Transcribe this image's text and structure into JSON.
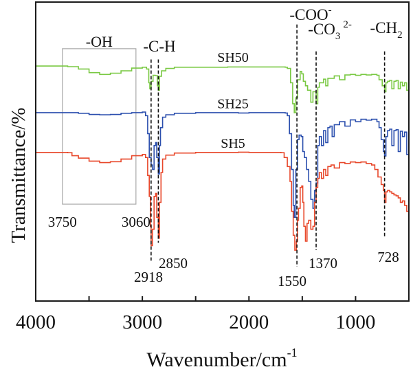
{
  "chart_data": {
    "type": "line",
    "title": "",
    "xlabel": "Wavenumber/cm",
    "xlabel_sup": "-1",
    "ylabel": "Transmittance/%",
    "xlim": [
      4000,
      500
    ],
    "ylim": [
      0,
      100
    ],
    "x_ticks": [
      4000,
      3000,
      2000,
      1000
    ],
    "x_minor_ticks": [
      3500,
      2500,
      1500
    ],
    "x_tick_labels": [
      "4000",
      "3000",
      "2000",
      "1000"
    ],
    "grid": false,
    "series": [
      {
        "name": "SH50",
        "color": "#7ac943",
        "label_at": [
          2150,
          80
        ],
        "points": [
          [
            4000,
            78.6
          ],
          [
            3800,
            78.6
          ],
          [
            3700,
            78.4
          ],
          [
            3600,
            77.6
          ],
          [
            3500,
            76.4
          ],
          [
            3400,
            75.8
          ],
          [
            3300,
            76.2
          ],
          [
            3200,
            77.0
          ],
          [
            3100,
            77.9
          ],
          [
            3000,
            78.2
          ],
          [
            2960,
            77.6
          ],
          [
            2940,
            73
          ],
          [
            2930,
            71.0
          ],
          [
            2918,
            73.5
          ],
          [
            2900,
            75.5
          ],
          [
            2880,
            75.4
          ],
          [
            2860,
            72.0
          ],
          [
            2850,
            70.5
          ],
          [
            2840,
            75.2
          ],
          [
            2820,
            77.0
          ],
          [
            2780,
            77.8
          ],
          [
            2700,
            78.2
          ],
          [
            2500,
            78.2
          ],
          [
            2200,
            78.3
          ],
          [
            2000,
            78.3
          ],
          [
            1800,
            78.3
          ],
          [
            1660,
            78.2
          ],
          [
            1640,
            77.8
          ],
          [
            1610,
            73
          ],
          [
            1590,
            66
          ],
          [
            1575,
            63.0
          ],
          [
            1560,
            68
          ],
          [
            1545,
            74
          ],
          [
            1520,
            76.8
          ],
          [
            1505,
            76.0
          ],
          [
            1490,
            73.5
          ],
          [
            1470,
            72.0
          ],
          [
            1450,
            70.5
          ],
          [
            1420,
            66.5
          ],
          [
            1400,
            70
          ],
          [
            1370,
            66.0
          ],
          [
            1355,
            71.5
          ],
          [
            1340,
            73
          ],
          [
            1300,
            74.2
          ],
          [
            1280,
            72
          ],
          [
            1260,
            74.5
          ],
          [
            1200,
            75.3
          ],
          [
            1150,
            74.0
          ],
          [
            1100,
            75.6
          ],
          [
            1050,
            75.8
          ],
          [
            1000,
            75.5
          ],
          [
            950,
            75.8
          ],
          [
            900,
            75.6
          ],
          [
            850,
            75.8
          ],
          [
            800,
            75.5
          ],
          [
            780,
            74.0
          ],
          [
            750,
            72.0
          ],
          [
            728,
            70.0
          ],
          [
            715,
            73.0
          ],
          [
            700,
            73.5
          ],
          [
            680,
            73.8
          ],
          [
            660,
            71.0
          ],
          [
            640,
            73.5
          ],
          [
            620,
            73.8
          ],
          [
            600,
            71.0
          ],
          [
            580,
            73.2
          ],
          [
            560,
            72.0
          ],
          [
            540,
            73.0
          ],
          [
            520,
            70.5
          ],
          [
            500,
            72.8
          ]
        ]
      },
      {
        "name": "SH25",
        "color": "#2b4fae",
        "label_at": [
          2150,
          64.5
        ],
        "points": [
          [
            4000,
            63.0
          ],
          [
            3800,
            63.0
          ],
          [
            3700,
            63.0
          ],
          [
            3600,
            62.8
          ],
          [
            3500,
            62.4
          ],
          [
            3400,
            62.3
          ],
          [
            3300,
            62.4
          ],
          [
            3200,
            62.8
          ],
          [
            3100,
            63.0
          ],
          [
            3000,
            63.2
          ],
          [
            2970,
            62.0
          ],
          [
            2950,
            56
          ],
          [
            2935,
            48
          ],
          [
            2918,
            45.5
          ],
          [
            2905,
            44
          ],
          [
            2890,
            52
          ],
          [
            2875,
            53.0
          ],
          [
            2865,
            48
          ],
          [
            2850,
            42.5
          ],
          [
            2840,
            52
          ],
          [
            2830,
            58
          ],
          [
            2810,
            61.5
          ],
          [
            2780,
            62.3
          ],
          [
            2700,
            62.8
          ],
          [
            2500,
            63.0
          ],
          [
            2300,
            63.0
          ],
          [
            2100,
            62.9
          ],
          [
            2000,
            63.0
          ],
          [
            1800,
            63.0
          ],
          [
            1660,
            62.9
          ],
          [
            1640,
            62.0
          ],
          [
            1620,
            56
          ],
          [
            1600,
            44
          ],
          [
            1585,
            32
          ],
          [
            1575,
            28.0
          ],
          [
            1560,
            44
          ],
          [
            1545,
            54
          ],
          [
            1530,
            55.5
          ],
          [
            1510,
            55
          ],
          [
            1495,
            50
          ],
          [
            1480,
            48
          ],
          [
            1460,
            44
          ],
          [
            1440,
            40
          ],
          [
            1420,
            34
          ],
          [
            1400,
            31
          ],
          [
            1385,
            37
          ],
          [
            1370,
            39.5
          ],
          [
            1355,
            52
          ],
          [
            1340,
            55
          ],
          [
            1320,
            52
          ],
          [
            1300,
            57
          ],
          [
            1280,
            53
          ],
          [
            1260,
            58
          ],
          [
            1240,
            58.5
          ],
          [
            1220,
            55
          ],
          [
            1200,
            59
          ],
          [
            1150,
            60.0
          ],
          [
            1100,
            58.5
          ],
          [
            1050,
            60.6
          ],
          [
            1000,
            60.0
          ],
          [
            950,
            60.8
          ],
          [
            900,
            60.5
          ],
          [
            850,
            60.8
          ],
          [
            800,
            60.0
          ],
          [
            780,
            58
          ],
          [
            760,
            54
          ],
          [
            740,
            50
          ],
          [
            728,
            48.5
          ],
          [
            715,
            55
          ],
          [
            700,
            57
          ],
          [
            680,
            57.5
          ],
          [
            660,
            52
          ],
          [
            640,
            57
          ],
          [
            620,
            57.3
          ],
          [
            600,
            50
          ],
          [
            580,
            56.8
          ],
          [
            560,
            55
          ],
          [
            540,
            56.5
          ],
          [
            520,
            49
          ],
          [
            500,
            56.5
          ]
        ]
      },
      {
        "name": "SH5",
        "color": "#e8472a",
        "label_at": [
          2150,
          51.3
        ],
        "points": [
          [
            4000,
            49.7
          ],
          [
            3800,
            49.7
          ],
          [
            3700,
            49.6
          ],
          [
            3660,
            48.6
          ],
          [
            3600,
            47.8
          ],
          [
            3500,
            46.8
          ],
          [
            3400,
            46.3
          ],
          [
            3300,
            46.6
          ],
          [
            3200,
            47.5
          ],
          [
            3100,
            48.6
          ],
          [
            3000,
            49.0
          ],
          [
            2970,
            48.0
          ],
          [
            2950,
            42
          ],
          [
            2935,
            35
          ],
          [
            2925,
            25
          ],
          [
            2918,
            18.5
          ],
          [
            2905,
            24
          ],
          [
            2890,
            35
          ],
          [
            2875,
            36
          ],
          [
            2865,
            28
          ],
          [
            2850,
            21
          ],
          [
            2840,
            33
          ],
          [
            2825,
            43
          ],
          [
            2810,
            47.5
          ],
          [
            2780,
            48.8
          ],
          [
            2700,
            49.5
          ],
          [
            2500,
            49.7
          ],
          [
            2300,
            49.7
          ],
          [
            2100,
            49.8
          ],
          [
            2000,
            49.7
          ],
          [
            1800,
            49.7
          ],
          [
            1700,
            49.6
          ],
          [
            1670,
            48
          ],
          [
            1640,
            45
          ],
          [
            1615,
            40
          ],
          [
            1600,
            30
          ],
          [
            1585,
            22
          ],
          [
            1570,
            17.0
          ],
          [
            1555,
            20
          ],
          [
            1545,
            27
          ],
          [
            1535,
            31
          ],
          [
            1520,
            38
          ],
          [
            1505,
            38.5
          ],
          [
            1495,
            33
          ],
          [
            1485,
            25
          ],
          [
            1470,
            20
          ],
          [
            1455,
            26
          ],
          [
            1440,
            27
          ],
          [
            1420,
            24
          ],
          [
            1400,
            25
          ],
          [
            1385,
            33
          ],
          [
            1370,
            38
          ],
          [
            1355,
            41
          ],
          [
            1340,
            43
          ],
          [
            1320,
            41
          ],
          [
            1300,
            44
          ],
          [
            1280,
            42
          ],
          [
            1260,
            45
          ],
          [
            1230,
            45.5
          ],
          [
            1200,
            44.5
          ],
          [
            1150,
            46.3
          ],
          [
            1100,
            46.0
          ],
          [
            1050,
            46.5
          ],
          [
            1000,
            46.3
          ],
          [
            950,
            46.5
          ],
          [
            900,
            46.0
          ],
          [
            850,
            45.5
          ],
          [
            820,
            44.0
          ],
          [
            790,
            41.5
          ],
          [
            760,
            39
          ],
          [
            740,
            37
          ],
          [
            728,
            33.0
          ],
          [
            715,
            36.5
          ],
          [
            700,
            37.0
          ],
          [
            680,
            36.5
          ],
          [
            660,
            36.0
          ],
          [
            640,
            35.5
          ],
          [
            620,
            35.2
          ],
          [
            600,
            34.5
          ],
          [
            580,
            33.0
          ],
          [
            560,
            33.5
          ],
          [
            540,
            32.0
          ],
          [
            520,
            30.0
          ],
          [
            500,
            31.5
          ]
        ]
      }
    ],
    "reference_lines": [
      {
        "wavenumber": 2918,
        "label": "2918",
        "group_label": "-C-H",
        "y_top": 80.8,
        "y_bottom": 13.5
      },
      {
        "wavenumber": 2850,
        "label": "2850",
        "y_top": 80.8,
        "y_bottom": 19.5
      },
      {
        "wavenumber": 1550,
        "label": "1550",
        "group_label": "-COO",
        "group_label_sup": "-",
        "y_top": 92.5,
        "y_bottom": 11.5
      },
      {
        "wavenumber": 1370,
        "label": "1370",
        "group_label": "-CO",
        "group_label_sub": "3",
        "group_label_sup": "2-",
        "y_top": 83.5,
        "y_bottom": 17.0
      },
      {
        "wavenumber": 728,
        "label": "728",
        "group_label": "-CH",
        "group_label_sub": "2",
        "y_top": 83.5,
        "y_bottom": 21.0
      }
    ],
    "region_box": {
      "label": "-OH",
      "x_from": 3750,
      "x_to": 3060,
      "y_top": 84.4,
      "y_bottom": 32.4,
      "x_from_label": "3750",
      "x_to_label": "3060"
    }
  }
}
